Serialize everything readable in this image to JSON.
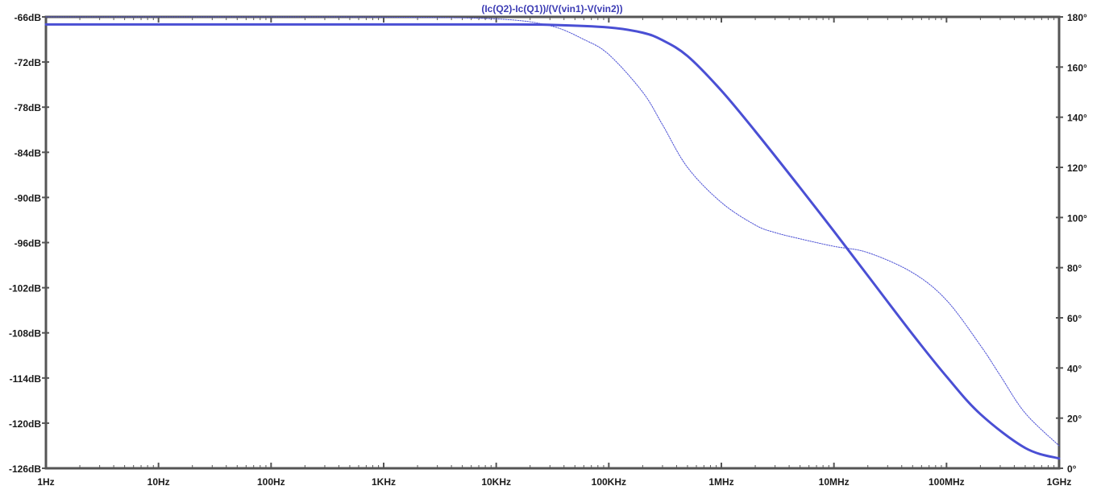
{
  "chart_data": {
    "type": "line",
    "title": "(Ic(Q2)-Ic(Q1))/(V(vin1)-V(vin2))",
    "x_scale": "log",
    "xlim_hz": [
      1,
      1000000000
    ],
    "x_tick_values_hz": [
      1,
      10,
      100,
      1000,
      10000,
      100000,
      1000000,
      10000000,
      100000000,
      1000000000
    ],
    "x_tick_labels": [
      "1Hz",
      "10Hz",
      "100Hz",
      "1KHz",
      "10KHz",
      "100KHz",
      "1MHz",
      "10MHz",
      "100MHz",
      "1GHz"
    ],
    "y_left": {
      "unit": "dB",
      "lim": [
        -126,
        -66
      ],
      "tick_values": [
        -66,
        -72,
        -78,
        -84,
        -90,
        -96,
        -102,
        -108,
        -114,
        -120,
        -126
      ],
      "tick_labels": [
        "-66dB",
        "-72dB",
        "-78dB",
        "-84dB",
        "-90dB",
        "-96dB",
        "-102dB",
        "-108dB",
        "-114dB",
        "-120dB",
        "-126dB"
      ]
    },
    "y_right": {
      "unit": "degree",
      "lim": [
        0,
        180
      ],
      "tick_values": [
        0,
        20,
        40,
        60,
        80,
        100,
        120,
        140,
        160,
        180
      ],
      "tick_labels": [
        "0°",
        "20°",
        "40°",
        "60°",
        "80°",
        "100°",
        "120°",
        "140°",
        "160°",
        "180°"
      ]
    },
    "grid": false,
    "series": [
      {
        "kind": "magnitude",
        "axis": "left",
        "style": "solid",
        "x": [
          1,
          10,
          100,
          1000,
          10000,
          30000,
          100000,
          200000,
          300000,
          500000,
          1000000,
          2000000,
          5000000,
          10000000,
          20000000,
          50000000,
          100000000,
          200000000,
          500000000,
          1000000000
        ],
        "y": [
          -67,
          -67,
          -67,
          -67,
          -67,
          -67.05,
          -67.4,
          -68.1,
          -69.1,
          -71.2,
          -75.8,
          -81.2,
          -88.7,
          -94.5,
          -100.4,
          -108.2,
          -113.8,
          -118.8,
          -123.3,
          -124.7
        ]
      },
      {
        "kind": "phase",
        "axis": "right",
        "style": "dotted",
        "x": [
          1,
          10,
          100,
          1000,
          10000,
          30000,
          60000,
          100000,
          200000,
          300000,
          500000,
          1000000,
          2000000,
          3000000,
          5000000,
          10000000,
          20000000,
          50000000,
          100000000,
          200000000,
          300000000,
          500000000,
          1000000000
        ],
        "y": [
          180,
          180,
          180,
          179.9,
          179.2,
          176.5,
          171,
          165,
          150,
          137,
          120,
          106,
          97,
          94,
          91.5,
          88.5,
          86,
          78,
          67,
          49,
          37,
          22,
          9
        ]
      }
    ]
  },
  "colors": {
    "trace": "#4a4fd4",
    "axis": "#555555",
    "title": "#3c3cb4",
    "background": "#ffffff"
  }
}
